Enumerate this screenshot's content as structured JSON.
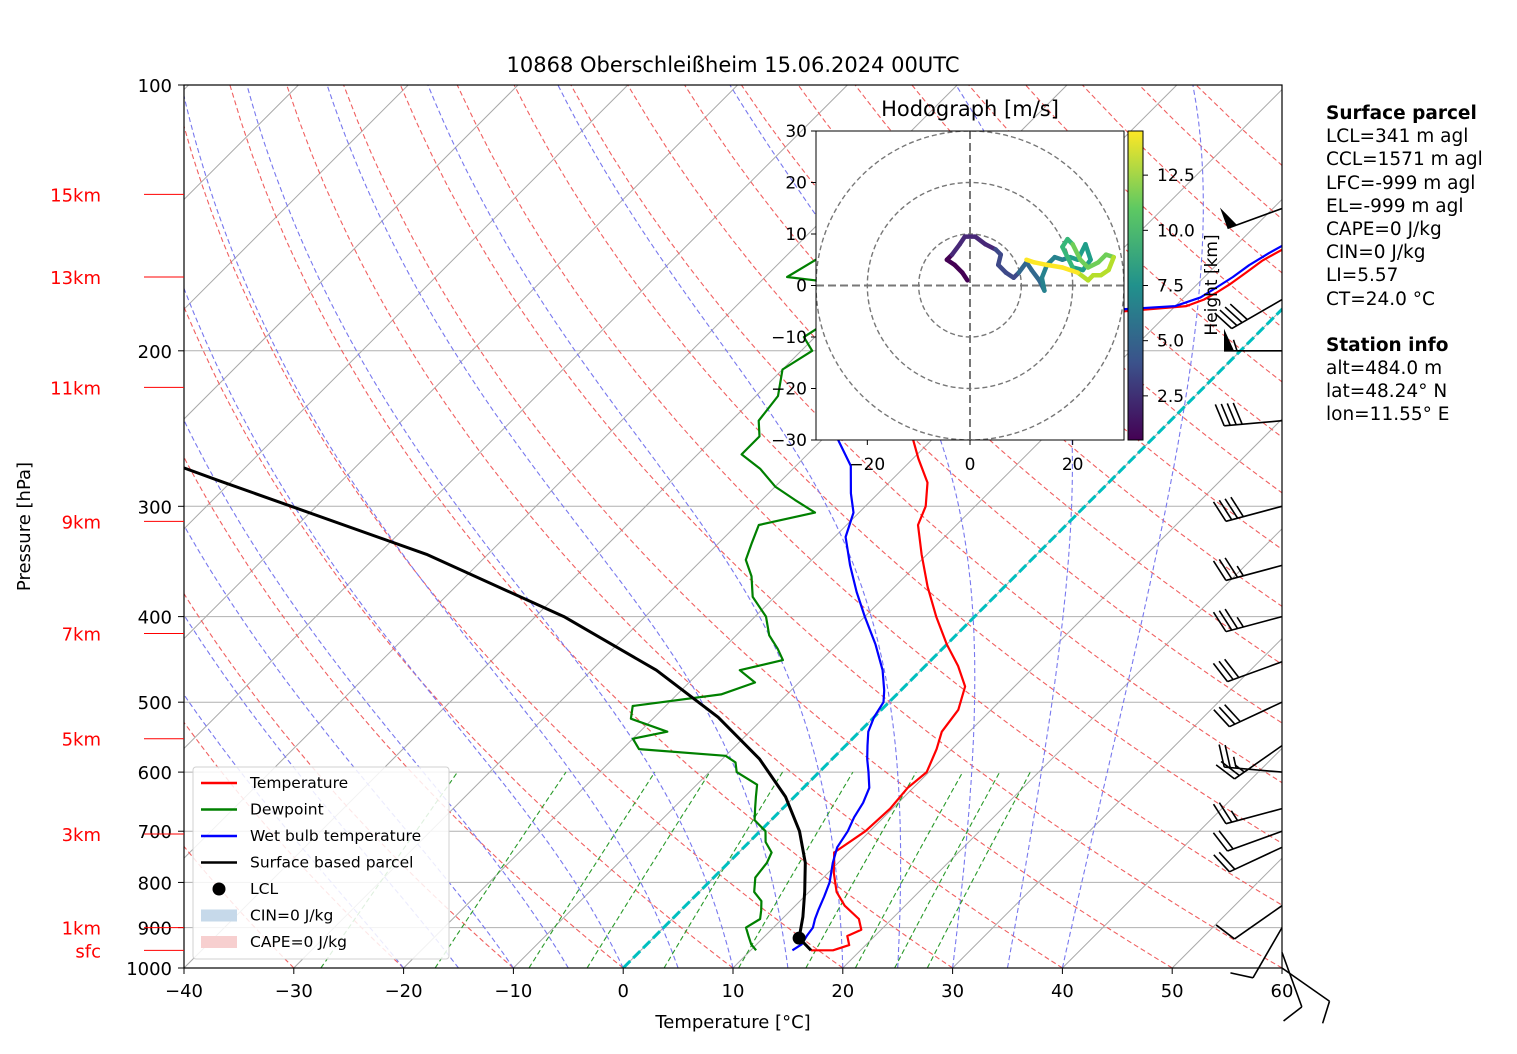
{
  "title": "10868 Oberschleißheim 15.06.2024 00UTC",
  "chart_data": {
    "type": "line",
    "subtype": "skew-T log-p diagram",
    "xlabel": "Temperature [°C]",
    "ylabel": "Pressure [hPa]",
    "xlim": [
      -40,
      60
    ],
    "ylim": [
      1000,
      100
    ],
    "y_scale": "log",
    "x_ticks": [
      -40,
      -30,
      -20,
      -10,
      0,
      10,
      20,
      30,
      40,
      50,
      60
    ],
    "x_tick_labels": [
      "−40",
      "−30",
      "−20",
      "−10",
      "0",
      "10",
      "20",
      "30",
      "40",
      "50",
      "60"
    ],
    "y_ticks": [
      1000,
      900,
      800,
      700,
      600,
      500,
      400,
      300,
      200,
      100
    ],
    "grid": true,
    "height_labels": [
      {
        "label": "15km",
        "p": 133
      },
      {
        "label": "13km",
        "p": 165
      },
      {
        "label": "11km",
        "p": 220
      },
      {
        "label": "9km",
        "p": 312
      },
      {
        "label": "7km",
        "p": 418
      },
      {
        "label": "5km",
        "p": 550
      },
      {
        "label": "3km",
        "p": 705
      },
      {
        "label": "1km",
        "p": 900
      },
      {
        "label": "sfc",
        "p": 955
      }
    ],
    "series": [
      {
        "name": "Temperature",
        "color": "#ff0000",
        "points": [
          [
            15.5,
            955
          ],
          [
            17.5,
            955
          ],
          [
            18.5,
            942
          ],
          [
            17.5,
            920
          ],
          [
            18.2,
            905
          ],
          [
            17.0,
            880
          ],
          [
            14.5,
            850
          ],
          [
            12.5,
            820
          ],
          [
            10.5,
            780
          ],
          [
            8.7,
            740
          ],
          [
            9.6,
            700
          ],
          [
            9.8,
            660
          ],
          [
            9.5,
            625
          ],
          [
            9.8,
            600
          ],
          [
            8.6,
            565
          ],
          [
            7.5,
            540
          ],
          [
            7.0,
            510
          ],
          [
            5.5,
            480
          ],
          [
            3.0,
            455
          ],
          [
            0,
            430
          ],
          [
            -3.5,
            400
          ],
          [
            -7,
            370
          ],
          [
            -10.5,
            340
          ],
          [
            -13.5,
            315
          ],
          [
            -14.5,
            300
          ],
          [
            -16.5,
            282
          ],
          [
            -19.5,
            265
          ],
          [
            -23,
            245
          ],
          [
            -26,
            230
          ],
          [
            -28,
            215
          ],
          [
            -27.5,
            205
          ],
          [
            -26.5,
            198
          ],
          [
            -24,
            188
          ],
          [
            -19.5,
            183
          ],
          [
            -9,
            178
          ],
          [
            -8,
            175
          ],
          [
            -7.5,
            172
          ],
          [
            -7,
            168
          ],
          [
            -6.6,
            163
          ],
          [
            -6.2,
            158
          ],
          [
            -5.3,
            153
          ],
          [
            -4,
            146
          ],
          [
            -2.5,
            142
          ],
          [
            -1.3,
            138
          ],
          [
            -0.8,
            135
          ]
        ]
      },
      {
        "name": "Dewpoint",
        "color": "#008000",
        "points": [
          [
            10.5,
            955
          ],
          [
            9.5,
            940
          ],
          [
            8.5,
            920
          ],
          [
            7.5,
            900
          ],
          [
            8,
            880
          ],
          [
            7.3,
            860
          ],
          [
            6.5,
            840
          ],
          [
            5.0,
            820
          ],
          [
            3.8,
            790
          ],
          [
            3.5,
            760
          ],
          [
            3.0,
            740
          ],
          [
            1.5,
            720
          ],
          [
            0.5,
            700
          ],
          [
            -1.5,
            680
          ],
          [
            -2.5,
            660
          ],
          [
            -3.5,
            640
          ],
          [
            -4.5,
            620
          ],
          [
            -7.5,
            600
          ],
          [
            -8.5,
            585
          ],
          [
            -10,
            575
          ],
          [
            -18.5,
            565
          ],
          [
            -20,
            550
          ],
          [
            -17.5,
            540
          ],
          [
            -22,
            522
          ],
          [
            -23,
            505
          ],
          [
            -16,
            490
          ],
          [
            -14,
            475
          ],
          [
            -16.5,
            460
          ],
          [
            -13.5,
            448
          ],
          [
            -15,
            435
          ],
          [
            -17,
            420
          ],
          [
            -19,
            400
          ],
          [
            -22,
            380
          ],
          [
            -24,
            360
          ],
          [
            -26,
            345
          ],
          [
            -27,
            330
          ],
          [
            -28,
            315
          ],
          [
            -24,
            305
          ],
          [
            -27,
            295
          ],
          [
            -30,
            285
          ],
          [
            -33,
            272
          ],
          [
            -36,
            262
          ],
          [
            -36,
            250
          ],
          [
            -37.5,
            240
          ],
          [
            -38,
            225
          ],
          [
            -40,
            210
          ],
          [
            -39,
            200
          ],
          [
            -41,
            193
          ],
          [
            -40,
            183
          ],
          [
            -39,
            175
          ],
          [
            -44,
            167
          ],
          [
            -48,
            165
          ],
          [
            -47,
            158
          ],
          [
            -45.5,
            150
          ],
          [
            -44.5,
            143
          ],
          [
            -43.5,
            138
          ],
          [
            -43,
            133
          ]
        ]
      },
      {
        "name": "Wet bulb temperature",
        "color": "#0000ff",
        "points": [
          [
            13.8,
            955
          ],
          [
            14.1,
            940
          ],
          [
            13.8,
            920
          ],
          [
            13.6,
            900
          ],
          [
            13.0,
            880
          ],
          [
            12.5,
            860
          ],
          [
            11.8,
            830
          ],
          [
            11.0,
            800
          ],
          [
            9.5,
            760
          ],
          [
            8.5,
            730
          ],
          [
            8.0,
            700
          ],
          [
            7.3,
            675
          ],
          [
            6.8,
            650
          ],
          [
            6.0,
            625
          ],
          [
            4.5,
            600
          ],
          [
            3.2,
            580
          ],
          [
            2.0,
            560
          ],
          [
            0.8,
            540
          ],
          [
            0,
            520
          ],
          [
            -0.5,
            500
          ],
          [
            -1.5,
            485
          ],
          [
            -3.5,
            460
          ],
          [
            -6.5,
            430
          ],
          [
            -10,
            400
          ],
          [
            -13,
            375
          ],
          [
            -16,
            350
          ],
          [
            -19,
            325
          ],
          [
            -20.5,
            305
          ],
          [
            -22.5,
            290
          ],
          [
            -25,
            270
          ],
          [
            -29,
            250
          ],
          [
            -31,
            235
          ],
          [
            -32,
            220
          ],
          [
            -31.5,
            208
          ],
          [
            -31,
            198
          ],
          [
            -28.5,
            188
          ],
          [
            -22,
            182
          ],
          [
            -10,
            178
          ],
          [
            -8.5,
            174
          ],
          [
            -8,
            170
          ],
          [
            -7.4,
            165
          ],
          [
            -7,
            160
          ],
          [
            -6.3,
            155
          ],
          [
            -5,
            148
          ],
          [
            -3,
            142
          ],
          [
            -1.8,
            137
          ],
          [
            -1.2,
            133
          ]
        ]
      },
      {
        "name": "Surface based parcel",
        "color": "#000000",
        "points": [
          [
            15.5,
            955
          ],
          [
            13.3,
            925
          ],
          [
            11.7,
            875
          ],
          [
            9.6,
            820
          ],
          [
            7.0,
            760
          ],
          [
            3.6,
            700
          ],
          [
            -0.8,
            640
          ],
          [
            -6.6,
            580
          ],
          [
            -14.2,
            520
          ],
          [
            -24.1,
            460
          ],
          [
            -37.4,
            400
          ],
          [
            -55.6,
            340
          ],
          [
            -81.5,
            280
          ],
          [
            -101.6,
            240
          ],
          [
            -126.1,
            200
          ],
          [
            -148.6,
            170
          ],
          [
            -166.3,
            150
          ],
          [
            -180.8,
            136
          ],
          [
            -185.0,
            132
          ]
        ]
      }
    ],
    "lcl": {
      "name": "LCL",
      "t": 13.3,
      "p": 925
    },
    "zero_isotherm": {
      "t": 0,
      "color": "#00bfbf"
    },
    "legend": {
      "placement": "lower-left",
      "entries": [
        {
          "label": "Temperature",
          "kind": "line",
          "color": "#ff0000"
        },
        {
          "label": "Dewpoint",
          "kind": "line",
          "color": "#008000"
        },
        {
          "label": "Wet bulb temperature",
          "kind": "line",
          "color": "#0000ff"
        },
        {
          "label": "Surface based parcel",
          "kind": "line",
          "color": "#000000"
        },
        {
          "label": "LCL",
          "kind": "dot",
          "color": "#000000"
        },
        {
          "label": "CIN=0 J/kg",
          "kind": "patch",
          "color": "#c6d9ea"
        },
        {
          "label": "CAPE=0 J/kg",
          "kind": "patch",
          "color": "#f7cfcf"
        }
      ]
    },
    "wind_barbs": [
      {
        "p": 138,
        "dir": 250,
        "kt": 50
      },
      {
        "p": 175,
        "dir": 240,
        "kt": 40
      },
      {
        "p": 200,
        "dir": 270,
        "kt": 55
      },
      {
        "p": 240,
        "dir": 265,
        "kt": 40
      },
      {
        "p": 300,
        "dir": 255,
        "kt": 40
      },
      {
        "p": 350,
        "dir": 255,
        "kt": 35
      },
      {
        "p": 400,
        "dir": 255,
        "kt": 35
      },
      {
        "p": 450,
        "dir": 250,
        "kt": 30
      },
      {
        "p": 500,
        "dir": 245,
        "kt": 30
      },
      {
        "p": 560,
        "dir": 235,
        "kt": 25
      },
      {
        "p": 600,
        "dir": 275,
        "kt": 25
      },
      {
        "p": 660,
        "dir": 255,
        "kt": 25
      },
      {
        "p": 700,
        "dir": 250,
        "kt": 20
      },
      {
        "p": 730,
        "dir": 245,
        "kt": 20
      },
      {
        "p": 850,
        "dir": 235,
        "kt": 10
      },
      {
        "p": 900,
        "dir": 210,
        "kt": 10
      },
      {
        "p": 960,
        "dir": 160,
        "kt": 10
      },
      {
        "p": 1000,
        "dir": 125,
        "kt": 10
      }
    ],
    "hodograph": {
      "title": "Hodograph [m/s]",
      "xlim": [
        -30,
        30
      ],
      "ylim": [
        -30,
        30
      ],
      "ticks": [
        -30,
        -20,
        -10,
        0,
        10,
        20,
        30
      ],
      "x_ticks": [
        -20,
        0,
        20
      ],
      "rings": [
        10,
        20,
        30
      ],
      "colorbar": {
        "label": "Height [km]",
        "min": 0.5,
        "max": 14.5,
        "ticks": [
          2.5,
          5.0,
          7.5,
          10.0,
          12.5
        ]
      },
      "points": [
        {
          "u": -0.5,
          "v": 1,
          "h": 0.5
        },
        {
          "u": -1.5,
          "v": 2.5,
          "h": 0.8
        },
        {
          "u": -3,
          "v": 4,
          "h": 1.2
        },
        {
          "u": -4.5,
          "v": 5,
          "h": 1.5
        },
        {
          "u": -3.5,
          "v": 6,
          "h": 1.8
        },
        {
          "u": -2,
          "v": 8,
          "h": 2.1
        },
        {
          "u": -1,
          "v": 9.5,
          "h": 2.4
        },
        {
          "u": 1,
          "v": 9.5,
          "h": 2.7
        },
        {
          "u": 3,
          "v": 8,
          "h": 3.0
        },
        {
          "u": 5,
          "v": 7,
          "h": 3.3
        },
        {
          "u": 6,
          "v": 6,
          "h": 3.6
        },
        {
          "u": 5.5,
          "v": 4,
          "h": 3.9
        },
        {
          "u": 7,
          "v": 2.5,
          "h": 4.2
        },
        {
          "u": 8.5,
          "v": 1.5,
          "h": 4.5
        },
        {
          "u": 9.5,
          "v": 2.5,
          "h": 4.8
        },
        {
          "u": 11,
          "v": 4.5,
          "h": 5.1
        },
        {
          "u": 12,
          "v": 3,
          "h": 5.4
        },
        {
          "u": 13.5,
          "v": 1,
          "h": 5.7
        },
        {
          "u": 14.5,
          "v": -1,
          "h": 6.0
        },
        {
          "u": 14,
          "v": 1.5,
          "h": 6.3
        },
        {
          "u": 15,
          "v": 4,
          "h": 6.6
        },
        {
          "u": 16.5,
          "v": 5.5,
          "h": 6.9
        },
        {
          "u": 18,
          "v": 5,
          "h": 7.2
        },
        {
          "u": 19.5,
          "v": 5.5,
          "h": 7.5
        },
        {
          "u": 21,
          "v": 5,
          "h": 7.8
        },
        {
          "u": 22.5,
          "v": 8,
          "h": 8.1
        },
        {
          "u": 23.5,
          "v": 5,
          "h": 8.4
        },
        {
          "u": 22,
          "v": 3,
          "h": 8.7
        },
        {
          "u": 20,
          "v": 3.5,
          "h": 9.0
        },
        {
          "u": 19,
          "v": 5.5,
          "h": 9.3
        },
        {
          "u": 18,
          "v": 7.5,
          "h": 9.6
        },
        {
          "u": 19,
          "v": 9,
          "h": 9.9
        },
        {
          "u": 20,
          "v": 8,
          "h": 10.2
        },
        {
          "u": 21.5,
          "v": 5,
          "h": 10.5
        },
        {
          "u": 23,
          "v": 3.5,
          "h": 10.8
        },
        {
          "u": 25,
          "v": 4.5,
          "h": 11.1
        },
        {
          "u": 26.5,
          "v": 6,
          "h": 11.4
        },
        {
          "u": 28,
          "v": 5.5,
          "h": 11.7
        },
        {
          "u": 27,
          "v": 3,
          "h": 12.0
        },
        {
          "u": 25.5,
          "v": 2,
          "h": 12.3
        },
        {
          "u": 24,
          "v": 2,
          "h": 12.6
        },
        {
          "u": 23,
          "v": 1,
          "h": 12.9
        },
        {
          "u": 21,
          "v": 2.5,
          "h": 13.2
        },
        {
          "u": 18,
          "v": 3.5,
          "h": 13.5
        },
        {
          "u": 15,
          "v": 4,
          "h": 13.8
        },
        {
          "u": 12.5,
          "v": 4.5,
          "h": 14.1
        },
        {
          "u": 11,
          "v": 5,
          "h": 14.4
        }
      ]
    }
  },
  "surface_parcel": {
    "heading": "Surface parcel",
    "lines": [
      "LCL=341 m agl",
      "CCL=1571 m agl",
      "LFC=-999 m agl",
      "EL=-999 m agl",
      "CAPE=0 J/kg",
      "CIN=0 J/kg",
      "LI=5.57",
      "CT=24.0 °C"
    ]
  },
  "station_info": {
    "heading": "Station info",
    "lines": [
      "alt=484.0 m",
      "lat=48.24° N",
      "lon=11.55° E"
    ]
  }
}
